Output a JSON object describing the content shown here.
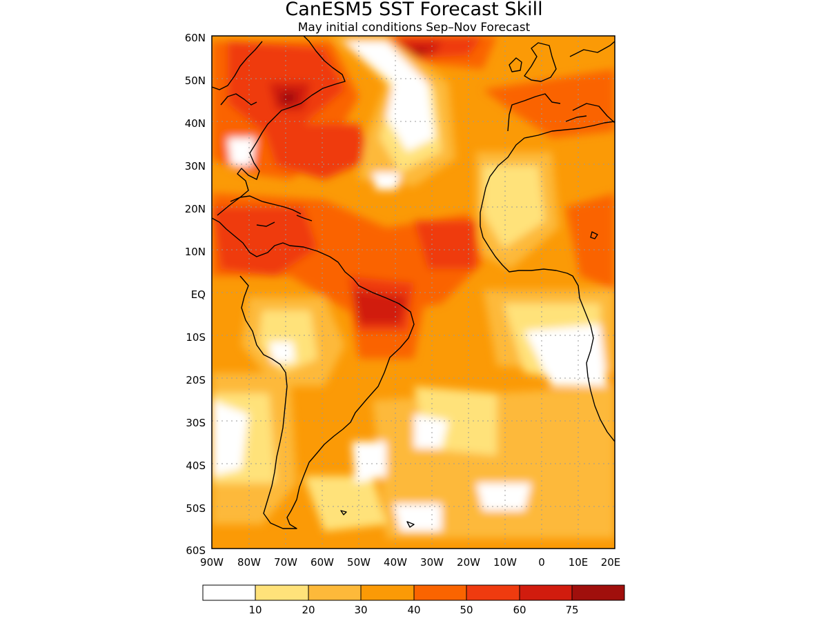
{
  "title": "CanESM5 SST Forecast Skill",
  "subtitle": "May initial conditions  Sep–Nov Forecast",
  "map": {
    "lat_range": [
      -60,
      60
    ],
    "lon_range": [
      -90,
      20
    ],
    "lat_ticks": [
      "60N",
      "50N",
      "40N",
      "30N",
      "20N",
      "10N",
      "EQ",
      "10S",
      "20S",
      "30S",
      "40S",
      "50S",
      "60S"
    ],
    "lon_ticks": [
      "90W",
      "80W",
      "70W",
      "60W",
      "50W",
      "40W",
      "30W",
      "20W",
      "10W",
      "0",
      "10E",
      "20E"
    ],
    "grid": "dotted",
    "coastlines": true,
    "field": "SST forecast skill"
  },
  "colorbar": {
    "bins": [
      {
        "color": "#ffffff"
      },
      {
        "color": "#ffe27a"
      },
      {
        "color": "#fdb93a"
      },
      {
        "color": "#fb9a06"
      },
      {
        "color": "#fa6400"
      },
      {
        "color": "#ef3b0f"
      },
      {
        "color": "#d11c0e"
      },
      {
        "color": "#a00f0c"
      }
    ],
    "labels": [
      "10",
      "20",
      "30",
      "40",
      "50",
      "60",
      "75"
    ]
  }
}
